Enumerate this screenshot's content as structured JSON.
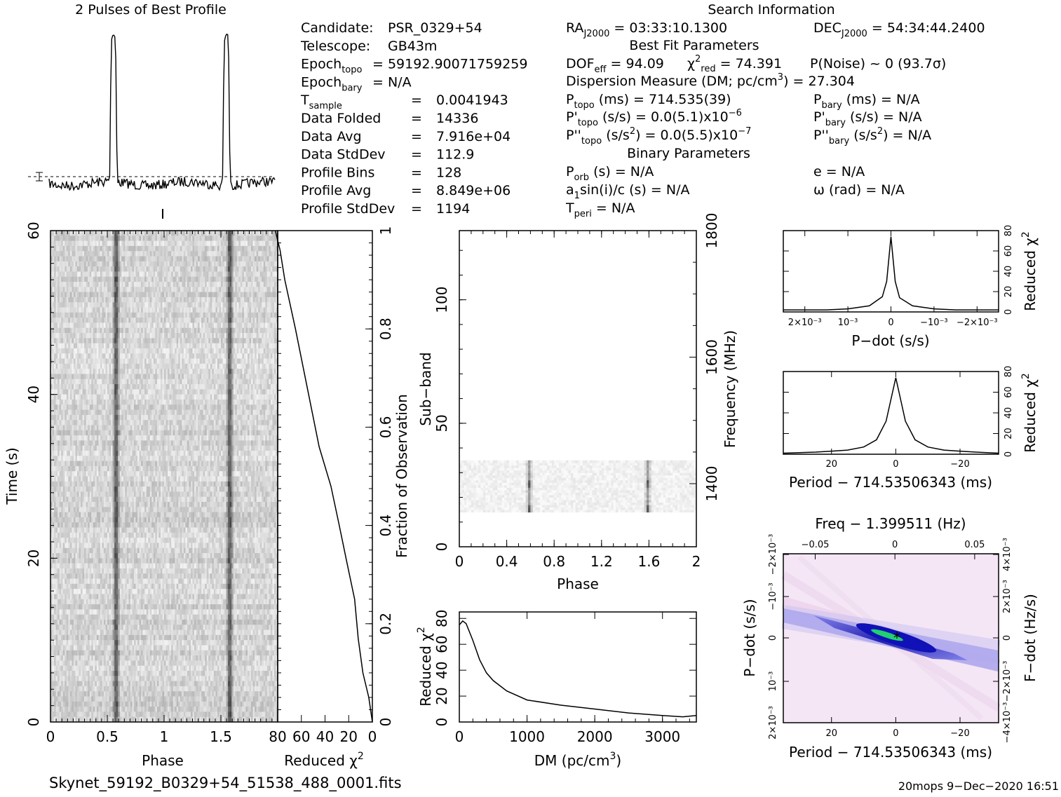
{
  "profile": {
    "title": "2 Pulses of Best Profile"
  },
  "candidate": {
    "lines": [
      [
        "Candidate:",
        "PSR_0329+54"
      ],
      [
        "Telescope:",
        "GB43m"
      ],
      [
        "Epoch_topo =",
        "59192.90071759259"
      ],
      [
        "Epoch_bary =",
        "N/A"
      ],
      [
        "T_sample =",
        "0.0041943"
      ],
      [
        "Data Folded =",
        "14336"
      ],
      [
        "Data Avg =",
        "7.916e+04"
      ],
      [
        "Data StdDev =",
        "112.9"
      ],
      [
        "Profile Bins =",
        "128"
      ],
      [
        "Profile Avg =",
        "8.849e+06"
      ],
      [
        "Profile StdDev =",
        "1194"
      ]
    ]
  },
  "search": {
    "title": "Search Information",
    "ra": "RA_J2000 = 03:33:10.1300",
    "dec": "DEC_J2000 = 54:34:44.2400",
    "best_fit_title": "Best Fit Parameters",
    "dof": "DOF_eff = 94.09",
    "chi2": "χ²_red = 74.391",
    "pnoise": "P(Noise) ~ 0    (93.7σ)",
    "dm": "Dispersion Measure (DM; pc/cm³) = 27.304",
    "p_topo": "714.535(39)",
    "pd_topo": "0.0(5.1)x10⁻⁶",
    "pdd_topo": "0.0(5.5)x10⁻⁷",
    "p_bary": "N/A",
    "pd_bary": "N/A",
    "pdd_bary": "N/A",
    "binary_title": "Binary Parameters",
    "p_orb": "N/A",
    "a1sini": "N/A",
    "t_peri": "N/A",
    "e": "N/A",
    "omega": "N/A"
  },
  "labels": {
    "time_axis": "Time (s)",
    "phase": "Phase",
    "reduced_chi2": "Reduced χ²",
    "fraction_obs": "Fraction of Observation",
    "subband": "Sub−band",
    "frequency": "Frequency (MHz)",
    "dm_axis": "DM (pc/cm³)",
    "pdot_axis": "P−dot (s/s)",
    "period_axis": "Period − 714.53506343 (ms)",
    "freq_axis": "Freq − 1.399511 (Hz)",
    "fdot_axis": "F−dot (Hz/s)"
  },
  "footer": {
    "filename": "Skynet_59192_B0329+54_51538_488_0001.fits",
    "stamp": "20mops   9−Dec−2020 16:51"
  },
  "colors": {
    "ink": "#000000",
    "grey": "#6f6f6f",
    "ppdot_bg": "#f7e7f7",
    "ppdot_peak": "#24d46a",
    "ppdot_band": "#2a2ad8"
  },
  "chart_data": [
    {
      "type": "line",
      "name": "profile",
      "x": [
        0,
        1,
        2
      ],
      "pulse_phase": [
        0.57,
        1.57
      ],
      "values_shape": "two narrow pulses, baseline noise"
    },
    {
      "type": "heatmap",
      "name": "time-phase",
      "xlabel": "Phase",
      "ylabel": "Time (s)",
      "xlim": [
        0,
        2
      ],
      "ylim": [
        0,
        60
      ],
      "xticks": [
        0,
        0.5,
        1,
        1.5
      ],
      "yticks": [
        0,
        20,
        40,
        60
      ]
    },
    {
      "type": "line",
      "name": "reduced-chi2-vs-time",
      "xlabel": "Reduced χ²",
      "ylabel": "Fraction of Observation",
      "xlim": [
        80,
        0
      ],
      "ylim": [
        0,
        1
      ],
      "xticks": [
        80,
        60,
        40,
        20,
        0
      ],
      "yticks": [
        0.2,
        0.4,
        0.6,
        0.8,
        1
      ],
      "points": [
        [
          0,
          0
        ],
        [
          3,
          0.05
        ],
        [
          8,
          0.1
        ],
        [
          12,
          0.17
        ],
        [
          15,
          0.25
        ],
        [
          22,
          0.33
        ],
        [
          28,
          0.4
        ],
        [
          35,
          0.48
        ],
        [
          45,
          0.56
        ],
        [
          55,
          0.68
        ],
        [
          65,
          0.8
        ],
        [
          74,
          0.9
        ],
        [
          78,
          0.96
        ],
        [
          82,
          1.0
        ]
      ]
    },
    {
      "type": "heatmap",
      "name": "subband-phase",
      "xlabel": "Phase",
      "ylabel": "Sub−band",
      "y2label": "Frequency (MHz)",
      "xlim": [
        0,
        2
      ],
      "ylim": [
        0,
        128
      ],
      "xticks": [
        0,
        0.4,
        0.8,
        1.2,
        1.6,
        2
      ],
      "yticks": [
        0,
        50,
        100
      ],
      "freq_ticks": [
        1400,
        1600,
        1800
      ],
      "signal_subbands": [
        14,
        35
      ]
    },
    {
      "type": "line",
      "name": "dm-curve",
      "xlabel": "DM (pc/cm³)",
      "ylabel": "Reduced χ²",
      "xlim": [
        0,
        3500
      ],
      "ylim": [
        0,
        85
      ],
      "xticks": [
        0,
        1000,
        2000,
        3000
      ],
      "yticks": [
        0,
        20,
        40,
        60,
        80
      ],
      "points": [
        [
          0,
          75
        ],
        [
          50,
          78
        ],
        [
          100,
          76
        ],
        [
          200,
          63
        ],
        [
          300,
          48
        ],
        [
          400,
          38
        ],
        [
          500,
          32
        ],
        [
          700,
          24
        ],
        [
          1000,
          17
        ],
        [
          1500,
          13
        ],
        [
          2000,
          10
        ],
        [
          2500,
          7
        ],
        [
          3000,
          5
        ],
        [
          3300,
          4
        ],
        [
          3500,
          5
        ]
      ]
    },
    {
      "type": "line",
      "name": "pdot-curve",
      "xlabel": "P−dot (s/s)",
      "ylabel": "Reduced χ²",
      "xlim": [
        0.0025,
        -0.0025
      ],
      "ylim": [
        0,
        80
      ],
      "xtick_labels": [
        "2×10⁻³",
        "10⁻³",
        "0",
        "−10⁻³",
        "−2×10⁻³"
      ],
      "yticks": [
        0,
        20,
        40,
        60,
        80
      ],
      "points": [
        [
          0.0025,
          2
        ],
        [
          0.002,
          2
        ],
        [
          0.0015,
          2
        ],
        [
          0.001,
          3
        ],
        [
          0.0005,
          6
        ],
        [
          0.0002,
          15
        ],
        [
          0.0001,
          30
        ],
        [
          0,
          74
        ],
        [
          -0.0001,
          30
        ],
        [
          -0.0002,
          14
        ],
        [
          -0.0005,
          6
        ],
        [
          -0.001,
          3
        ],
        [
          -0.0015,
          2
        ],
        [
          -0.0025,
          2
        ]
      ]
    },
    {
      "type": "line",
      "name": "period-curve",
      "xlabel": "Period − 714.53506343 (ms)",
      "ylabel": "Reduced χ²",
      "xlim": [
        35,
        -32
      ],
      "ylim": [
        0,
        80
      ],
      "xticks": [
        20,
        0,
        -20
      ],
      "yticks": [
        0,
        20,
        40,
        60,
        80
      ],
      "points": [
        [
          35,
          1
        ],
        [
          25,
          2
        ],
        [
          20,
          3
        ],
        [
          15,
          4
        ],
        [
          10,
          7
        ],
        [
          6,
          14
        ],
        [
          3,
          32
        ],
        [
          1,
          60
        ],
        [
          0,
          74
        ],
        [
          -1,
          60
        ],
        [
          -3,
          32
        ],
        [
          -6,
          14
        ],
        [
          -10,
          7
        ],
        [
          -15,
          4
        ],
        [
          -20,
          3
        ],
        [
          -25,
          2
        ],
        [
          -32,
          1
        ]
      ]
    },
    {
      "type": "heatmap",
      "name": "p-pdot",
      "xlabel": "Period − 714.53506343 (ms)",
      "ylabel": "P−dot (s/s)",
      "x2label": "Freq − 1.399511 (Hz)",
      "y2label": "F−dot (Hz/s)",
      "xticks": [
        20,
        0,
        -20
      ],
      "freq_ticks": [
        "−0.05",
        "0",
        "0.05"
      ],
      "yticks": [
        "2×10⁻³",
        "10⁻³",
        "0",
        "−10⁻³",
        "−2×10⁻³"
      ],
      "y2ticks": [
        "−4×10⁻³",
        "−2×10⁻³",
        "0",
        "2×10⁻³",
        "4×10⁻³"
      ]
    }
  ]
}
